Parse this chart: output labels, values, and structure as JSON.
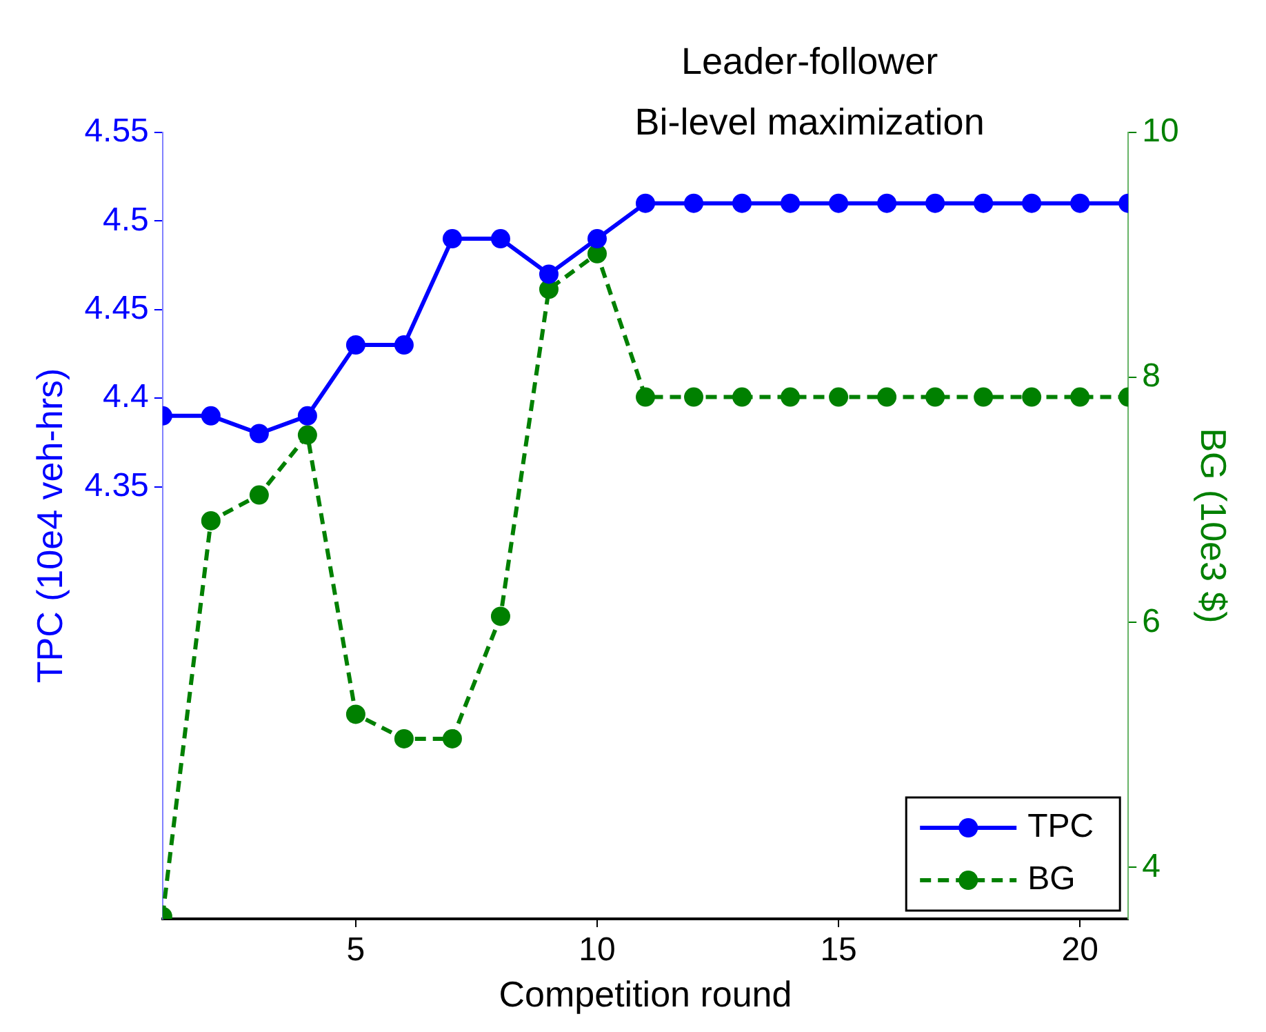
{
  "chart_data": {
    "type": "line",
    "title": "Leader-follower\nBi-level maximization",
    "xlabel": "Competition round",
    "ylabel": "TPC (10e4 veh-hrs)",
    "y2label": "BG (10e3 $)",
    "x": [
      1,
      2,
      3,
      4,
      5,
      6,
      7,
      8,
      9,
      10,
      11,
      12,
      13,
      14,
      15,
      16,
      17,
      18,
      19,
      20,
      21
    ],
    "xlim": [
      1,
      21
    ],
    "xticks": [
      5,
      10,
      15,
      20
    ],
    "ylim": [
      4.106,
      4.55
    ],
    "yticks": [
      4.35,
      4.4,
      4.45,
      4.5,
      4.55
    ],
    "y2lim": [
      3.58,
      10
    ],
    "y2ticks": [
      4,
      6,
      8,
      10
    ],
    "series": [
      {
        "name": "TPC",
        "color": "#0000ff",
        "line_style": "solid",
        "values": [
          4.39,
          4.39,
          4.38,
          4.39,
          4.43,
          4.43,
          4.49,
          4.49,
          4.47,
          4.49,
          4.51,
          4.51,
          4.51,
          4.51,
          4.51,
          4.51,
          4.51,
          4.51,
          4.51,
          4.51,
          4.51
        ]
      },
      {
        "name": "BG",
        "color": "#008000",
        "axis": "y2",
        "line_style": "dashed",
        "values": [
          3.6,
          6.83,
          7.04,
          7.53,
          5.25,
          5.05,
          5.05,
          6.05,
          8.72,
          9.01,
          7.84,
          7.84,
          7.84,
          7.84,
          7.84,
          7.84,
          7.84,
          7.84,
          7.84,
          7.84,
          7.84
        ]
      }
    ],
    "marker": "circle",
    "grid": false,
    "legend": "bottom right"
  }
}
